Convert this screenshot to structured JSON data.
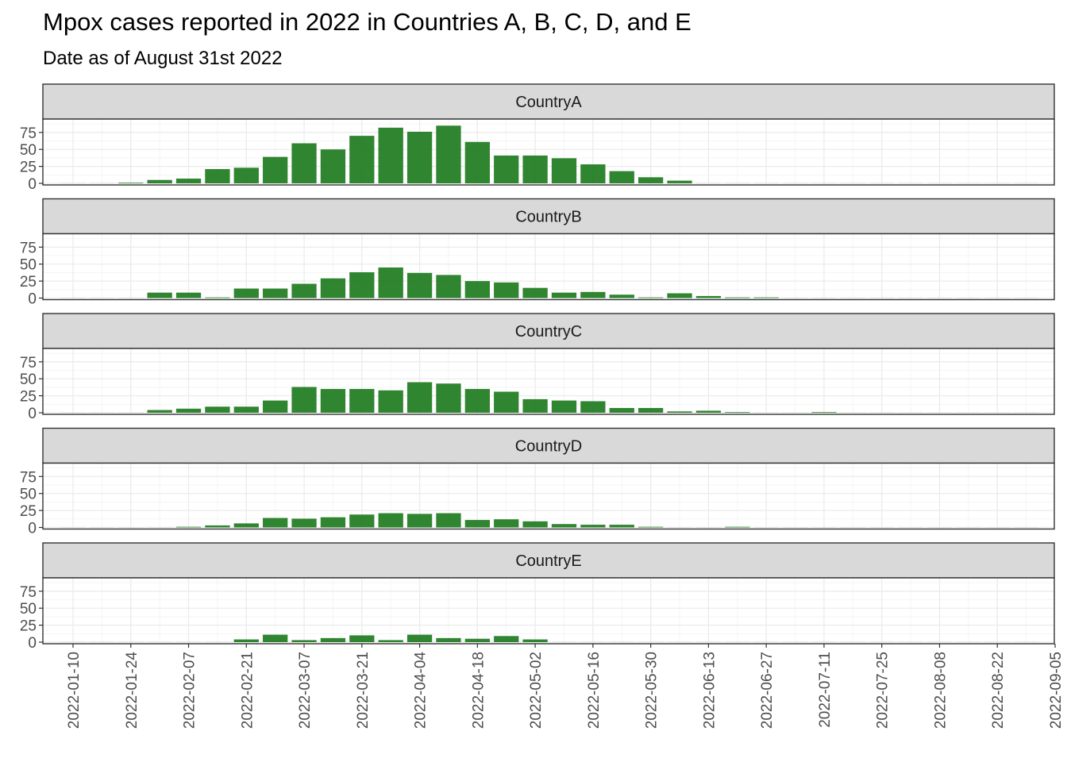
{
  "chart_data": {
    "type": "bar",
    "title": "Mpox cases reported in 2022 in Countries A, B, C, D, and E",
    "subtitle": "Date as of August 31st 2022",
    "xlabel": "",
    "ylabel": "",
    "ylim": [
      0,
      90
    ],
    "yticks": [
      0,
      25,
      50,
      75
    ],
    "xticks": [
      "2022-01-10",
      "2022-01-24",
      "2022-02-07",
      "2022-02-21",
      "2022-03-07",
      "2022-03-21",
      "2022-04-04",
      "2022-04-18",
      "2022-05-02",
      "2022-05-16",
      "2022-05-30",
      "2022-06-13",
      "2022-06-27",
      "2022-07-11",
      "2022-07-25",
      "2022-08-08",
      "2022-08-22",
      "2022-09-05"
    ],
    "x": [
      "2022-01-10",
      "2022-01-17",
      "2022-01-24",
      "2022-01-31",
      "2022-02-07",
      "2022-02-14",
      "2022-02-21",
      "2022-02-28",
      "2022-03-07",
      "2022-03-14",
      "2022-03-21",
      "2022-03-28",
      "2022-04-04",
      "2022-04-11",
      "2022-04-18",
      "2022-04-25",
      "2022-05-02",
      "2022-05-09",
      "2022-05-16",
      "2022-05-23",
      "2022-05-30",
      "2022-06-06",
      "2022-06-13",
      "2022-06-20",
      "2022-06-27",
      "2022-07-04",
      "2022-07-11",
      "2022-07-18",
      "2022-07-25",
      "2022-08-01",
      "2022-08-08",
      "2022-08-15",
      "2022-08-22",
      "2022-08-29"
    ],
    "bar_color": "#1e7b1e",
    "grid": true,
    "series": [
      {
        "name": "CountryA",
        "values": [
          0,
          0,
          1,
          5,
          7,
          21,
          23,
          39,
          59,
          50,
          70,
          82,
          76,
          85,
          61,
          41,
          41,
          37,
          28,
          18,
          9,
          4,
          0,
          0,
          0,
          0,
          0,
          0,
          0,
          0,
          0,
          0,
          0,
          0
        ]
      },
      {
        "name": "CountryB",
        "values": [
          0,
          0,
          0,
          8,
          8,
          1,
          14,
          14,
          21,
          29,
          38,
          45,
          37,
          34,
          25,
          23,
          15,
          8,
          9,
          5,
          1,
          7,
          3,
          1,
          1,
          0,
          0,
          0,
          0,
          0,
          0,
          0,
          0,
          0
        ]
      },
      {
        "name": "CountryC",
        "values": [
          0,
          0,
          0,
          4,
          6,
          9,
          9,
          18,
          38,
          35,
          35,
          33,
          45,
          43,
          35,
          31,
          20,
          18,
          17,
          7,
          7,
          2,
          3,
          1,
          0,
          0,
          1,
          0,
          0,
          0,
          0,
          0,
          0,
          0
        ]
      },
      {
        "name": "CountryD",
        "values": [
          0,
          0,
          0,
          0,
          1,
          3,
          6,
          14,
          13,
          15,
          19,
          21,
          20,
          21,
          11,
          12,
          9,
          5,
          4,
          4,
          1,
          0,
          0,
          1,
          0,
          0,
          0,
          0,
          0,
          0,
          0,
          0,
          0,
          0
        ]
      },
      {
        "name": "CountryE",
        "values": [
          0,
          0,
          0,
          0,
          0,
          0,
          4,
          11,
          3,
          6,
          10,
          3,
          11,
          6,
          5,
          9,
          4,
          0,
          0,
          0,
          0,
          0,
          0,
          0,
          0,
          0,
          0,
          0,
          0,
          0,
          0,
          0,
          0,
          0
        ]
      }
    ]
  }
}
